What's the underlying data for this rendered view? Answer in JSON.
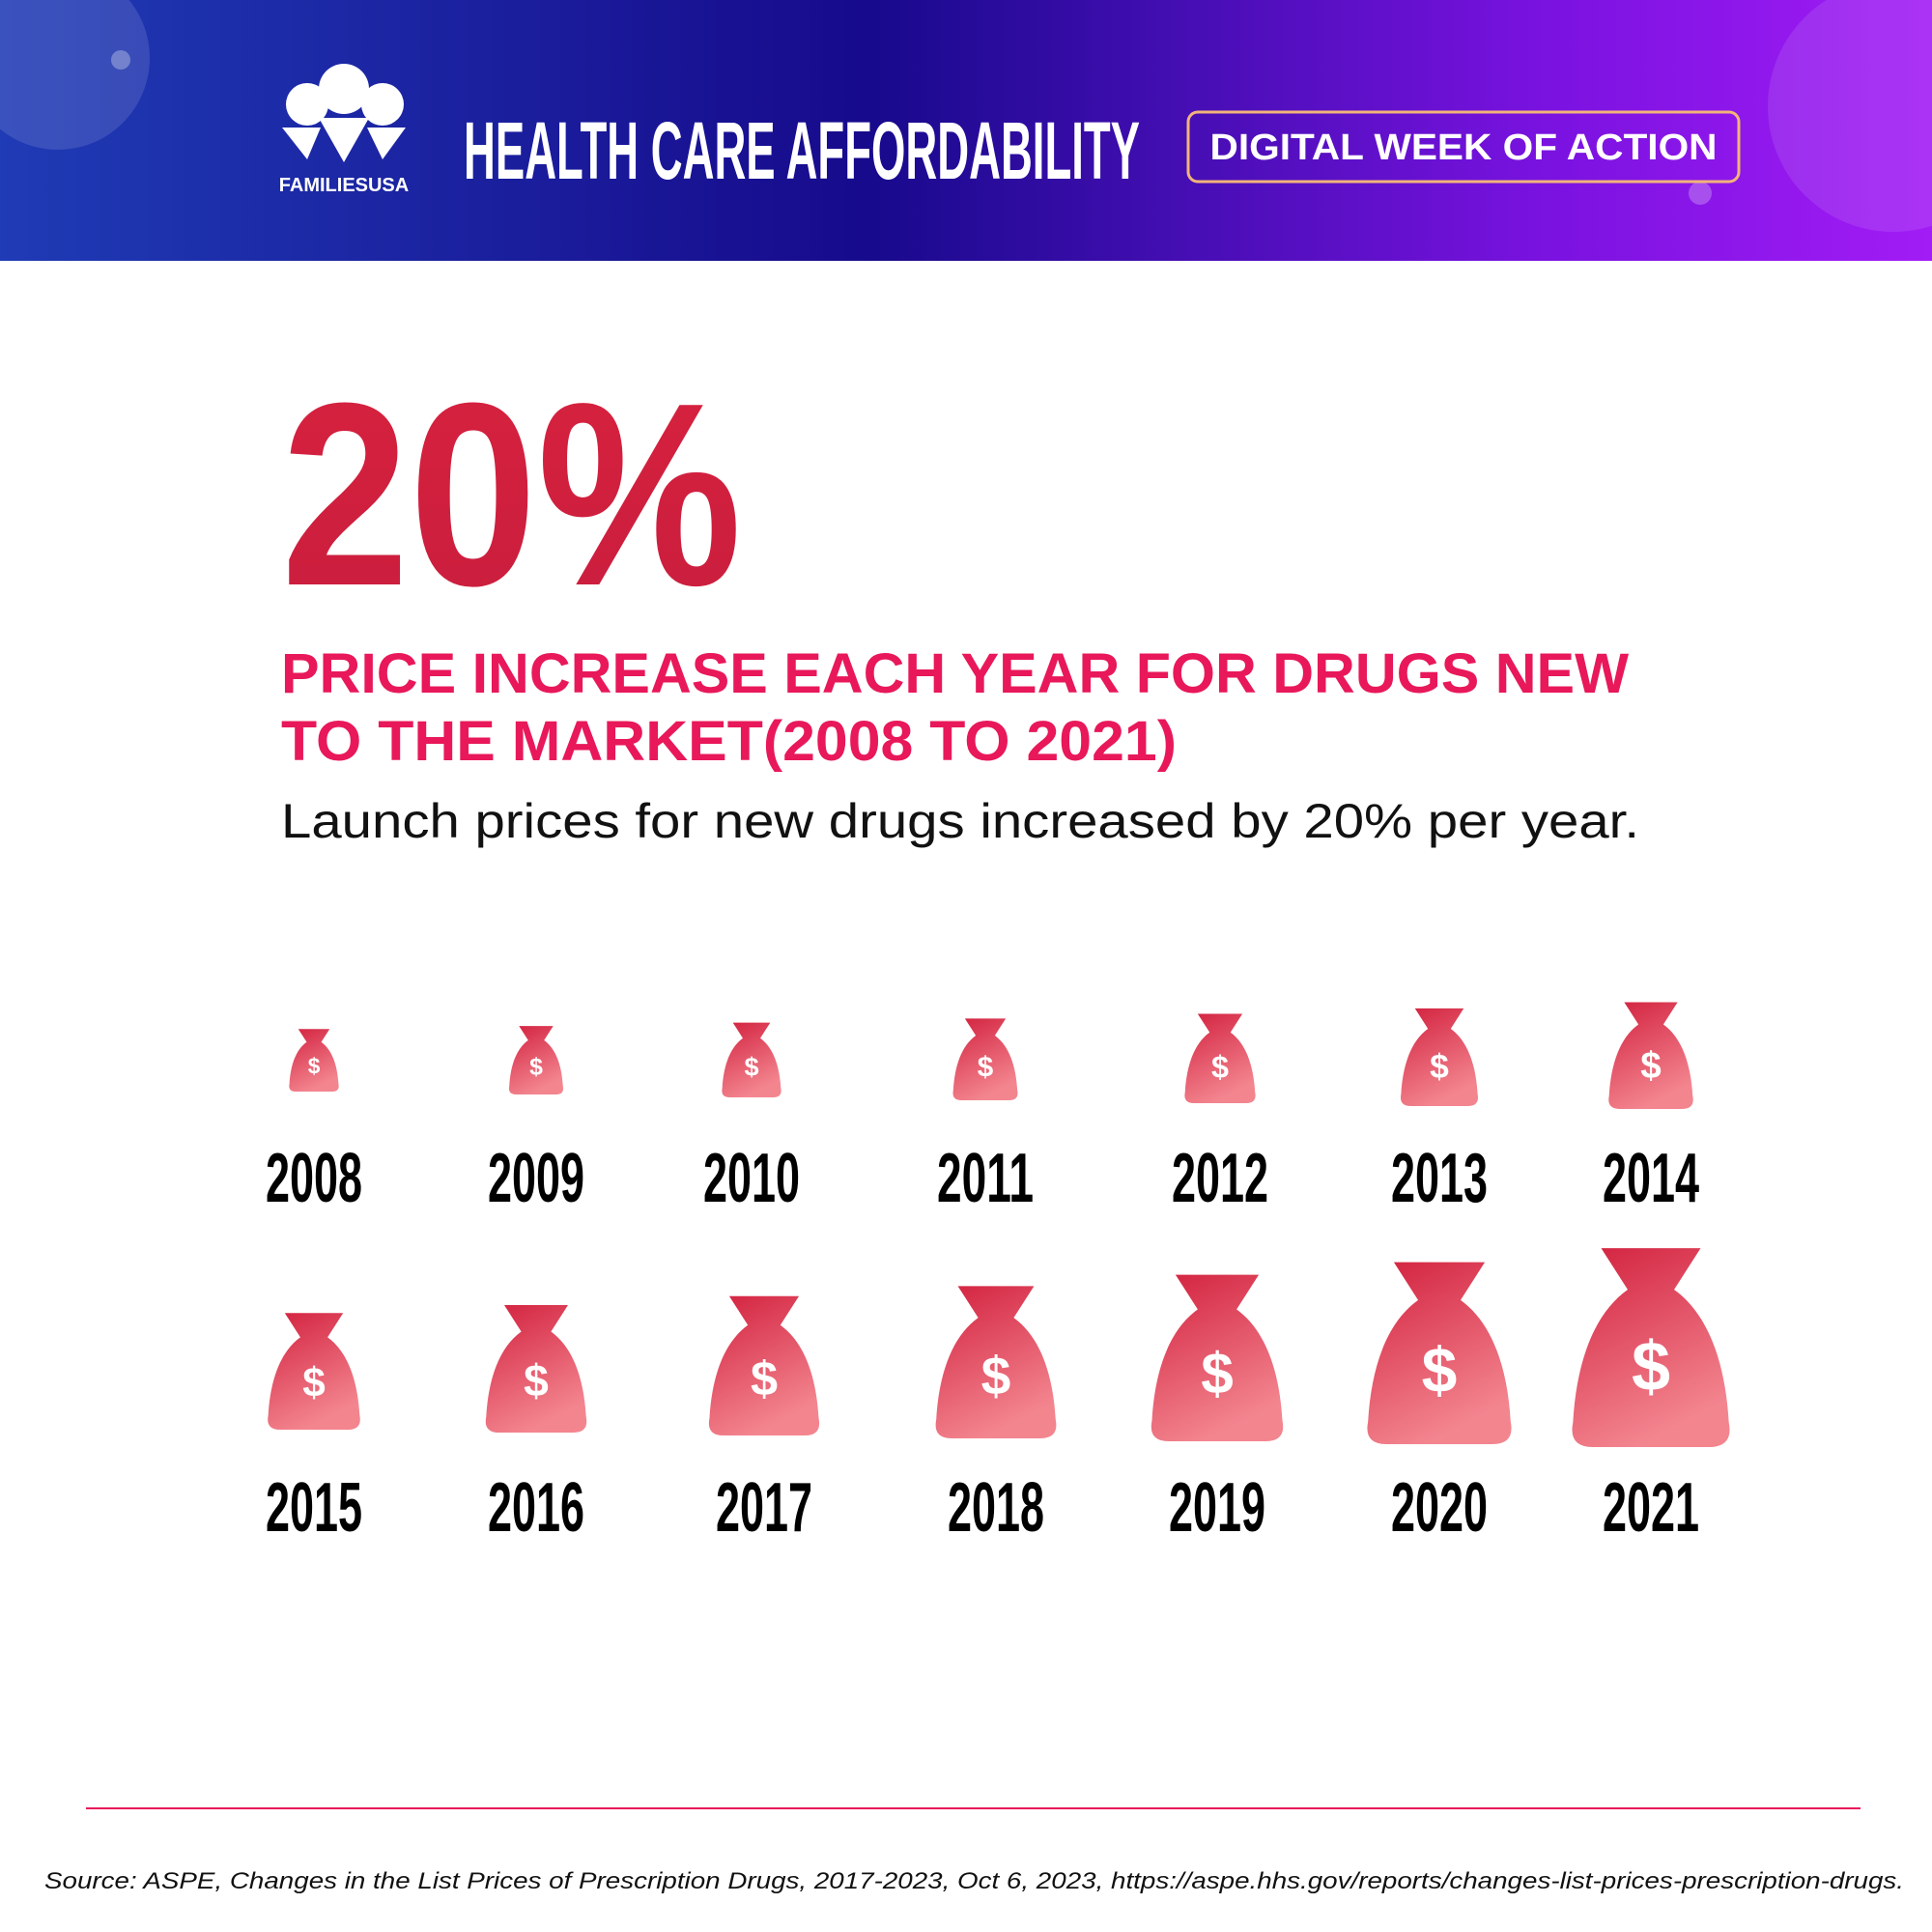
{
  "header": {
    "logo_text": "FAMILIESUSA",
    "title": "HEALTH CARE AFFORDABILITY",
    "badge": "DIGITAL WEEK OF ACTION"
  },
  "stat": {
    "value": "20%",
    "headline": [
      "PRICE INCREASE EACH YEAR FOR DRUGS NEW",
      "TO THE MARKET(2008 TO 2021)"
    ],
    "description": "Launch prices for new drugs increased by 20% per year."
  },
  "bag_symbol": "$",
  "years": [
    "2008",
    "2009",
    "2010",
    "2011",
    "2012",
    "2013",
    "2014",
    "2015",
    "2016",
    "2017",
    "2018",
    "2019",
    "2020",
    "2021"
  ],
  "source": "Source: ASPE, Changes in the List Prices of Prescription Drugs, 2017-2023, Oct 6, 2023, https://aspe.hhs.gov/reports/changes-list-prices-prescription-drugs."
}
